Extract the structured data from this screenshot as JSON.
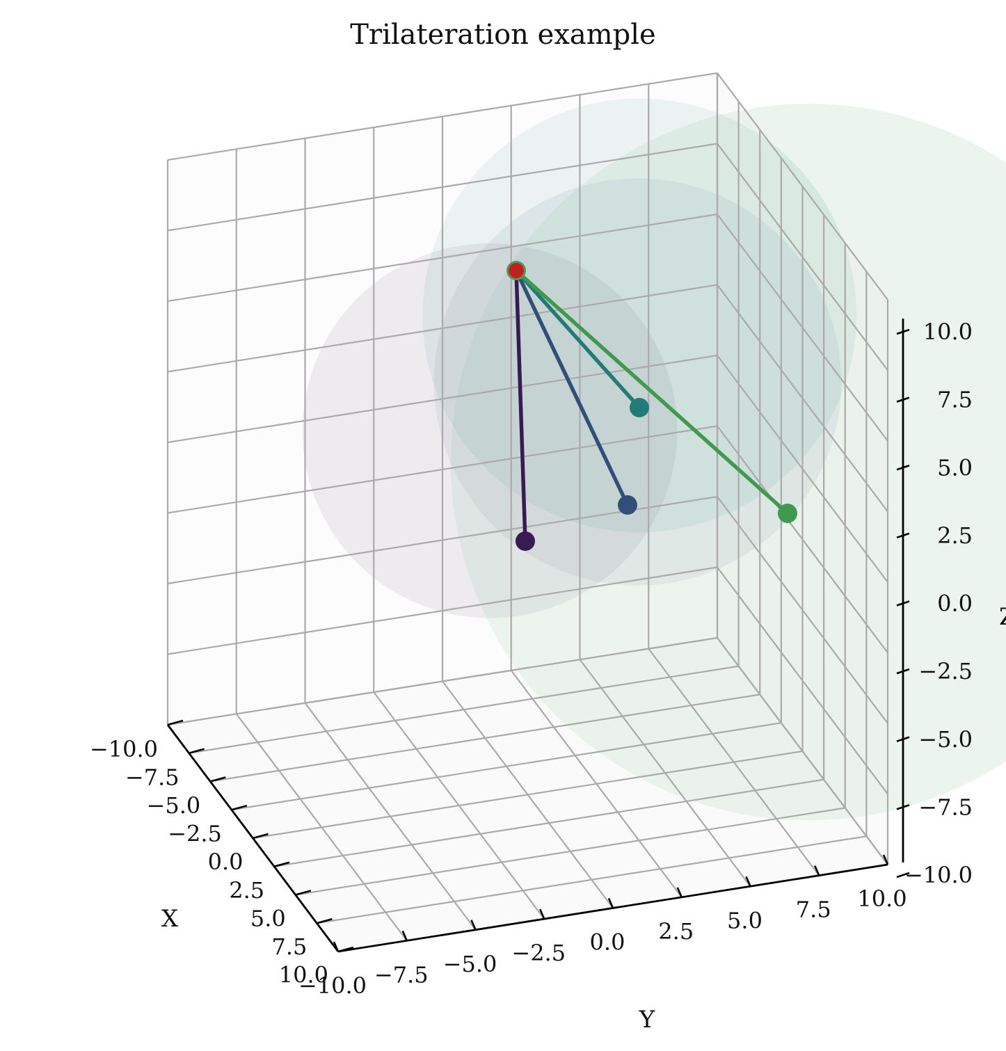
{
  "chart_data": {
    "type": "scatter",
    "projection": "3d",
    "title": "Trilateration example",
    "xlabel": "X",
    "ylabel": "Y",
    "zlabel": "Z",
    "xlim": [
      -10,
      10
    ],
    "ylim": [
      -10,
      10
    ],
    "zlim": [
      -10,
      10
    ],
    "grid": true,
    "x_ticks": [
      "−10.0",
      "−7.5",
      "−5.0",
      "−2.5",
      "0.0",
      "2.5",
      "5.0",
      "7.5",
      "10.0"
    ],
    "y_ticks": [
      "−10.0",
      "−7.5",
      "−5.0",
      "−2.5",
      "0.0",
      "2.5",
      "5.0",
      "7.5",
      "10.0"
    ],
    "z_ticks": [
      "−10.0",
      "−7.5",
      "−5.0",
      "−2.5",
      "0.0",
      "2.5",
      "5.0",
      "7.5",
      "10.0"
    ],
    "target": {
      "x": 0,
      "y": 0,
      "z": 10,
      "color": "#c0201e"
    },
    "anchors": [
      {
        "x": 2,
        "y": -2,
        "z": 4,
        "color": "#3a1a52"
      },
      {
        "x": 0,
        "y": 4,
        "z": 4,
        "color": "#30507a"
      },
      {
        "x": -3,
        "y": 5,
        "z": 5,
        "color": "#217c78"
      },
      {
        "x": 4,
        "y": 9,
        "z": 2,
        "color": "#3f9a50"
      }
    ]
  }
}
